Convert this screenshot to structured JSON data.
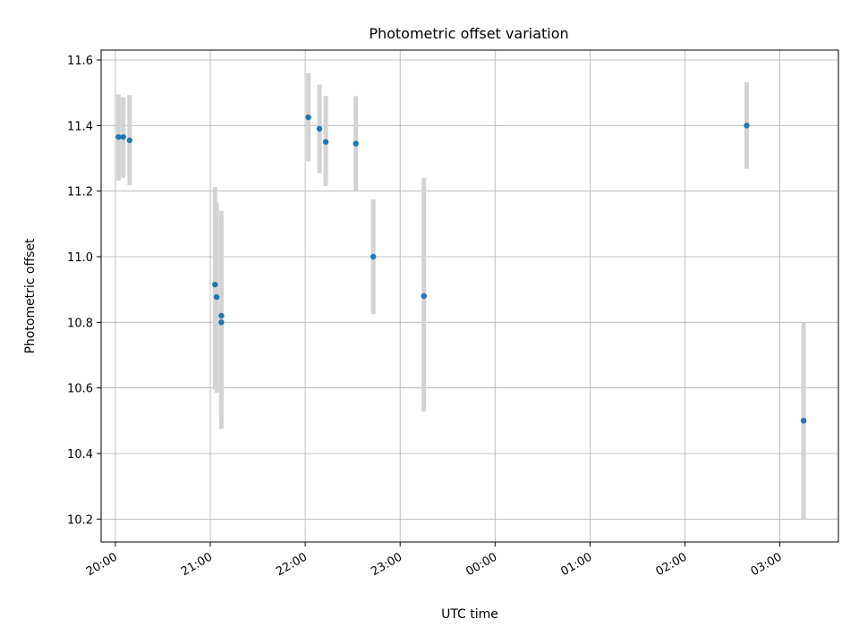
{
  "chart_data": {
    "type": "scatter",
    "title": "Photometric offset variation",
    "xlabel": "UTC time",
    "ylabel": "Photometric offset",
    "grid": true,
    "xlim": [
      "19:51",
      "03:37"
    ],
    "ylim": [
      10.13,
      11.63
    ],
    "x_ticks": [
      "20:00",
      "21:00",
      "22:00",
      "23:00",
      "00:00",
      "01:00",
      "02:00",
      "03:00"
    ],
    "y_ticks": [
      "10.2",
      "10.4",
      "10.6",
      "10.8",
      "11.0",
      "11.2",
      "11.4",
      "11.6"
    ],
    "point_color": "#1f77b4",
    "errorbar_color": "#d3d3d3",
    "points": [
      {
        "x": "20:02",
        "y": 11.365,
        "err_low": 11.232,
        "err_high": 11.495
      },
      {
        "x": "20:05",
        "y": 11.365,
        "err_low": 11.24,
        "err_high": 11.487
      },
      {
        "x": "20:09",
        "y": 11.355,
        "err_low": 11.218,
        "err_high": 11.493
      },
      {
        "x": "21:03",
        "y": 10.915,
        "err_low": 10.595,
        "err_high": 11.212
      },
      {
        "x": "21:04",
        "y": 10.877,
        "err_low": 10.585,
        "err_high": 11.165
      },
      {
        "x": "21:07",
        "y": 10.82,
        "err_low": 10.505,
        "err_high": 11.14
      },
      {
        "x": "21:07",
        "y": 10.8,
        "err_low": 10.475,
        "err_high": 11.1
      },
      {
        "x": "22:02",
        "y": 11.425,
        "err_low": 11.29,
        "err_high": 11.56
      },
      {
        "x": "22:09",
        "y": 11.39,
        "err_low": 11.255,
        "err_high": 11.525
      },
      {
        "x": "22:13",
        "y": 11.35,
        "err_low": 11.215,
        "err_high": 11.49
      },
      {
        "x": "22:32",
        "y": 11.345,
        "err_low": 11.2,
        "err_high": 11.49
      },
      {
        "x": "22:43",
        "y": 11.0,
        "err_low": 10.825,
        "err_high": 11.175
      },
      {
        "x": "23:15",
        "y": 10.88,
        "err_low": 10.528,
        "err_high": 11.24
      },
      {
        "x": "02:39",
        "y": 11.4,
        "err_low": 11.268,
        "err_high": 11.532
      },
      {
        "x": "03:15",
        "y": 10.5,
        "err_low": 10.2,
        "err_high": 10.8
      }
    ]
  }
}
